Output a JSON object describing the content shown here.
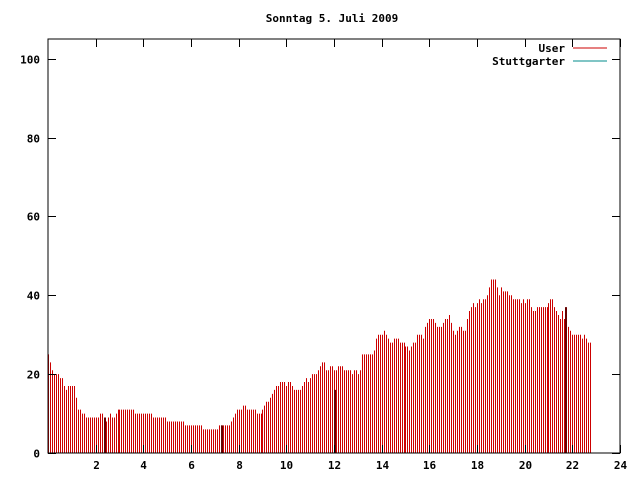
{
  "chart_data": {
    "type": "bar",
    "title": "Sonntag 5. Juli 2009",
    "xlabel": "",
    "ylabel": "",
    "xlim": [
      0,
      24
    ],
    "ylim": [
      0,
      105
    ],
    "x_ticks": [
      "2",
      "4",
      "6",
      "8",
      "10",
      "12",
      "14",
      "16",
      "18",
      "20",
      "22",
      "24"
    ],
    "y_ticks": [
      "0",
      "20",
      "40",
      "60",
      "80",
      "100"
    ],
    "grid": false,
    "legend_position": "top-right",
    "series": [
      {
        "name": "User",
        "color": "#cc0000",
        "x_unit": "hours",
        "x_start": 0,
        "x_step": 0.083333,
        "values": [
          25,
          23,
          21,
          20,
          20,
          20,
          19,
          19,
          17,
          16,
          17,
          17,
          17,
          17,
          14,
          11,
          11,
          10,
          10,
          9,
          9,
          9,
          9,
          9,
          9,
          9,
          10,
          10,
          8,
          8,
          9,
          10,
          9,
          9,
          10,
          11,
          11,
          11,
          11,
          11,
          11,
          11,
          11,
          11,
          10,
          10,
          10,
          10,
          10,
          10,
          10,
          10,
          10,
          9,
          9,
          9,
          9,
          9,
          9,
          9,
          8,
          8,
          8,
          8,
          8,
          8,
          8,
          8,
          8,
          7,
          7,
          7,
          7,
          7,
          7,
          7,
          7,
          7,
          6,
          6,
          6,
          6,
          6,
          6,
          6,
          6,
          7,
          7,
          7,
          7,
          7,
          7,
          8,
          9,
          10,
          11,
          11,
          11,
          12,
          12,
          11,
          11,
          11,
          11,
          11,
          10,
          10,
          10,
          11,
          12,
          13,
          13,
          14,
          15,
          16,
          17,
          17,
          18,
          18,
          18,
          17,
          18,
          18,
          17,
          16,
          16,
          16,
          16,
          17,
          18,
          19,
          18,
          19,
          20,
          20,
          20,
          21,
          22,
          23,
          23,
          21,
          21,
          22,
          22,
          21,
          21,
          22,
          22,
          22,
          21,
          21,
          21,
          21,
          20,
          21,
          21,
          20,
          21,
          25,
          25,
          25,
          25,
          25,
          25,
          26,
          29,
          30,
          30,
          30,
          31,
          30,
          29,
          28,
          28,
          29,
          29,
          29,
          28,
          28,
          28,
          27,
          27,
          26,
          27,
          28,
          28,
          30,
          30,
          30,
          29,
          32,
          33,
          34,
          34,
          34,
          33,
          32,
          32,
          32,
          33,
          34,
          34,
          35,
          33,
          31,
          30,
          31,
          32,
          32,
          31,
          31,
          34,
          36,
          37,
          38,
          37,
          38,
          39,
          38,
          39,
          39,
          40,
          42,
          44,
          44,
          44,
          42,
          40,
          42,
          41,
          41,
          41,
          40,
          40,
          39,
          39,
          39,
          39,
          38,
          39,
          38,
          39,
          39,
          37,
          36,
          36,
          37,
          37,
          37,
          37,
          37,
          37,
          38,
          39,
          39,
          37,
          36,
          35,
          34,
          36,
          34,
          33,
          32,
          31,
          30,
          30,
          30,
          30,
          30,
          29,
          30,
          29,
          28,
          28
        ]
      },
      {
        "name": "Stuttgarter",
        "color": "#008b8b",
        "values": []
      }
    ],
    "spikes": [
      {
        "x": 2.4,
        "value": 9
      },
      {
        "x": 7.3,
        "value": 7
      },
      {
        "x": 12.05,
        "value": 16
      },
      {
        "x": 21.75,
        "value": 37
      }
    ]
  }
}
